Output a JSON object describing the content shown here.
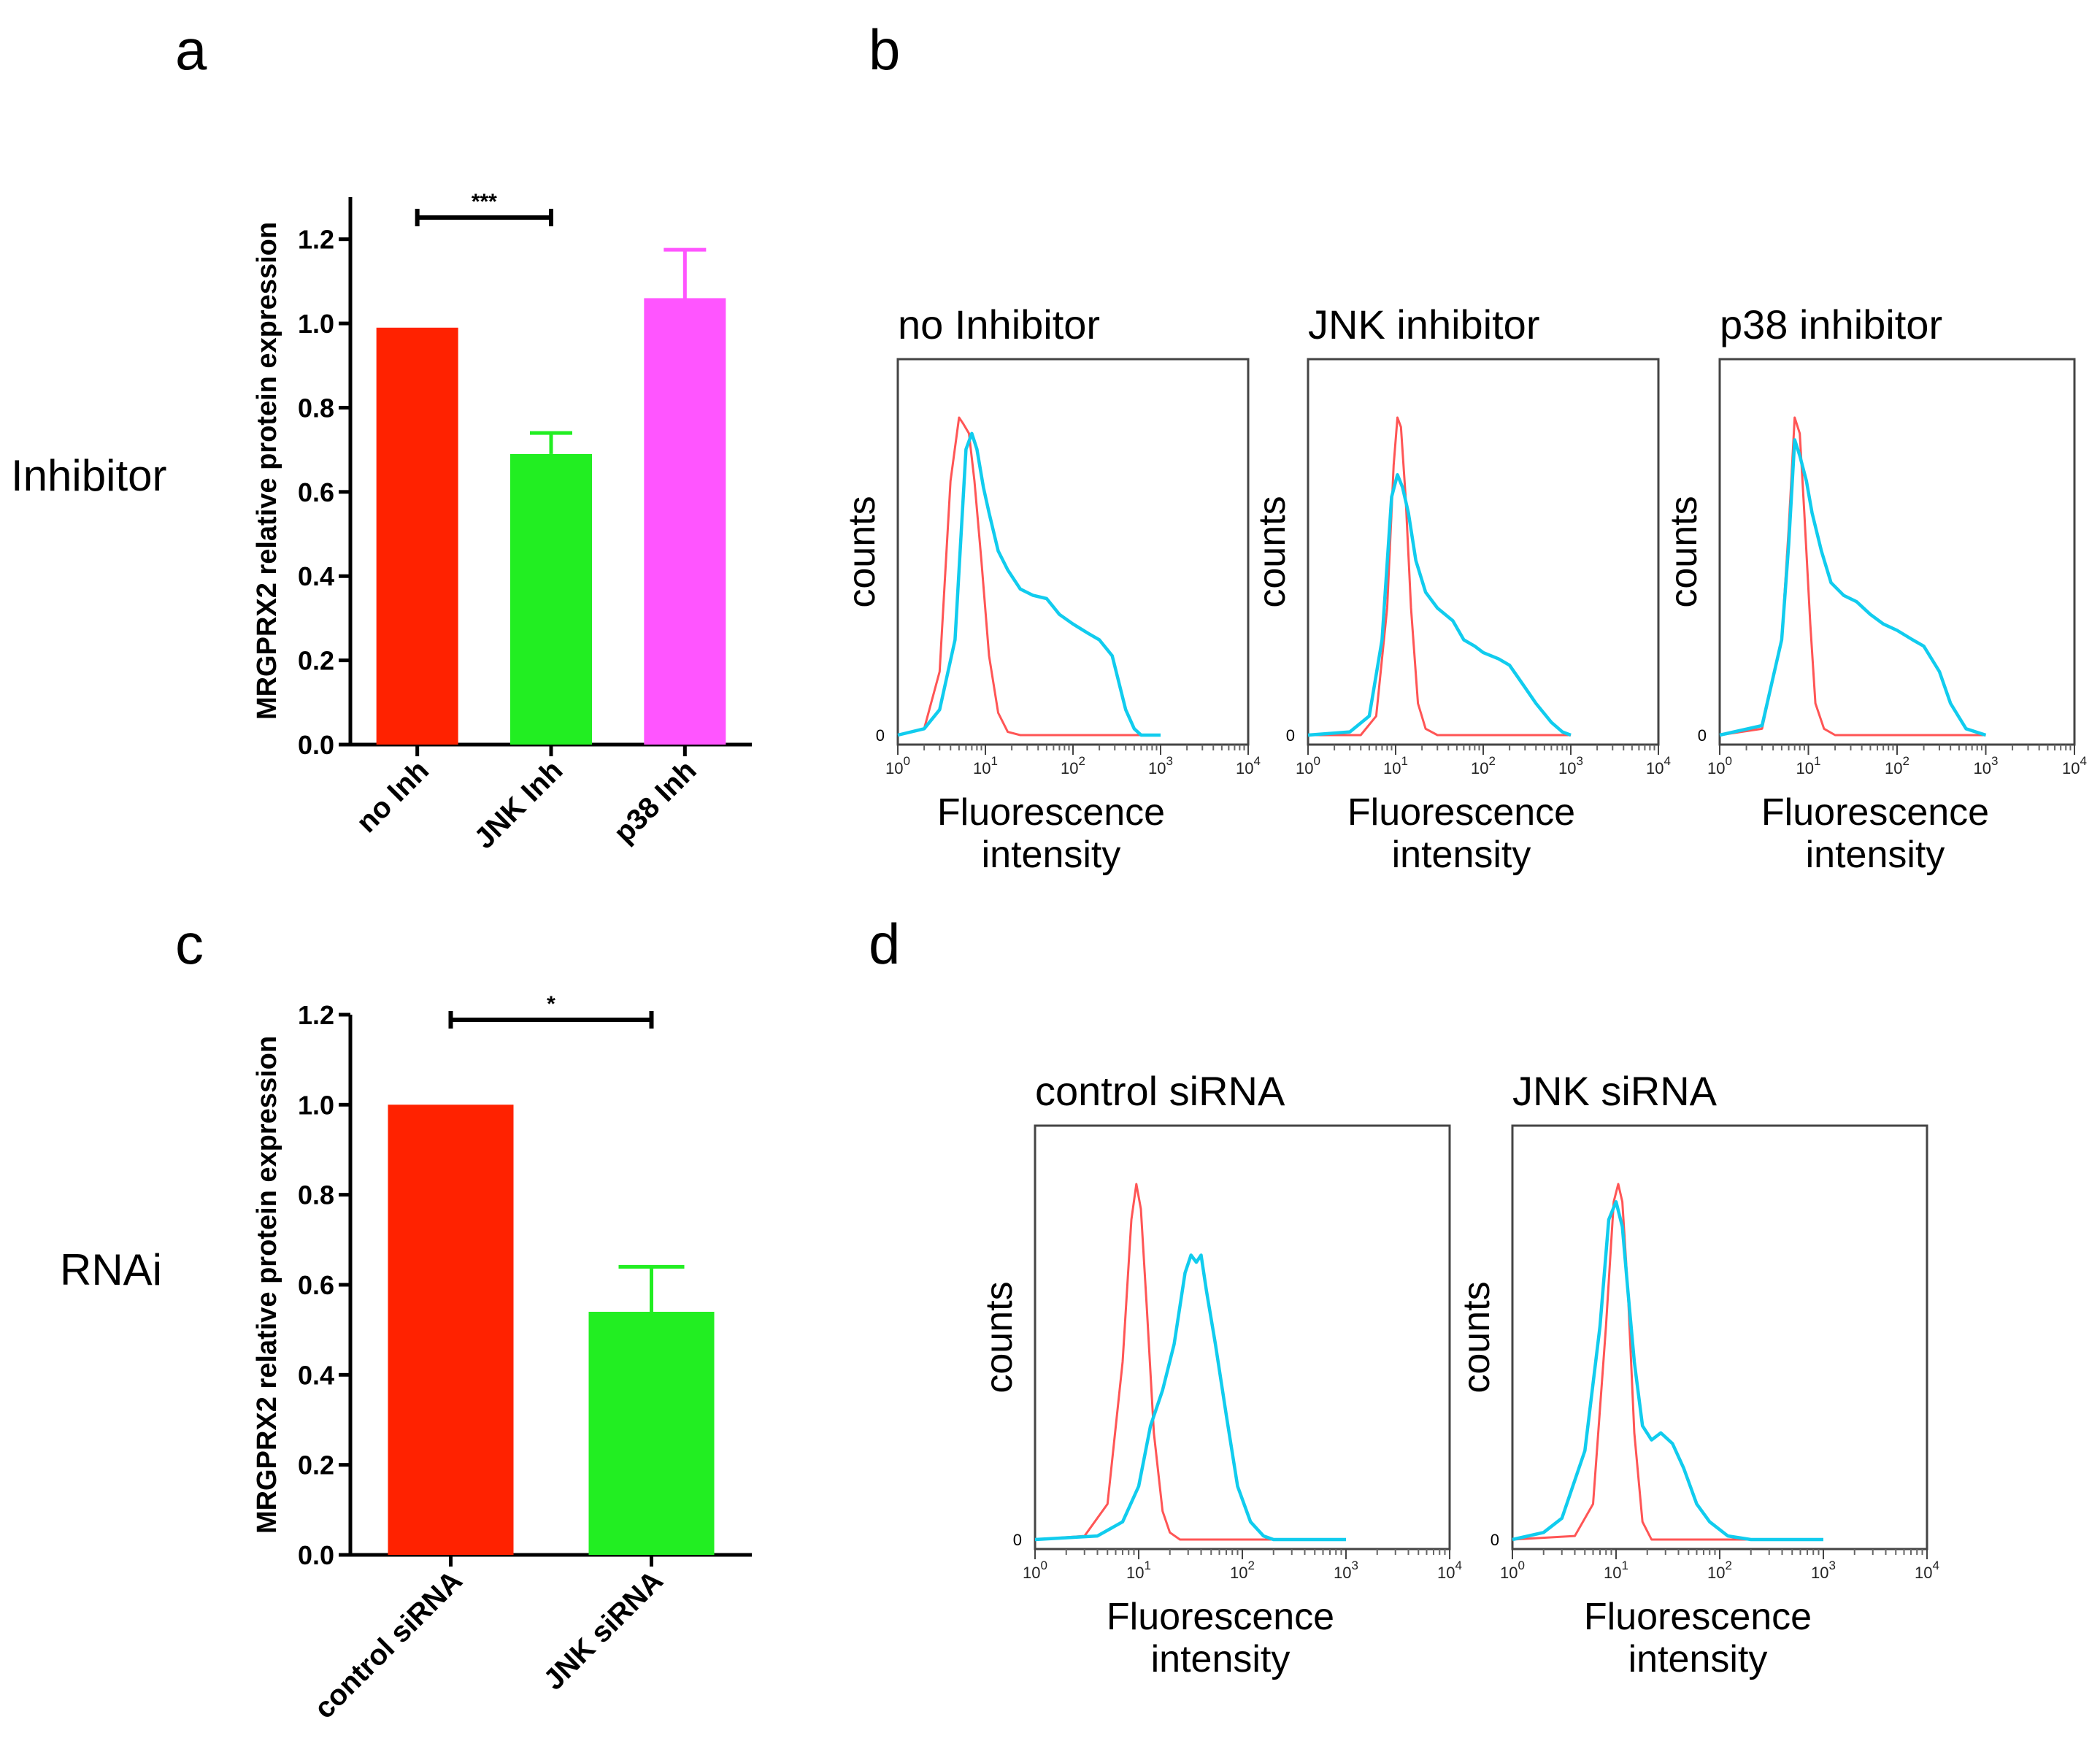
{
  "panel_letters": [
    "a",
    "b",
    "c",
    "d"
  ],
  "row_labels": [
    "Inhibitor",
    "RNAi"
  ],
  "chart_data": [
    {
      "panel": "a",
      "type": "bar",
      "ylabel": "MRGPRX2 relative protein expression",
      "categories": [
        "no Inh",
        "JNK Inh",
        "p38 Inh"
      ],
      "values": [
        0.99,
        0.69,
        1.06
      ],
      "error": [
        0,
        0.05,
        0.115
      ],
      "colors": [
        "#ff2200",
        "#22ee22",
        "#ff55ff"
      ],
      "ylim": [
        0,
        1.3
      ],
      "yticks": [
        "0.0",
        "0.2",
        "0.4",
        "0.6",
        "0.8",
        "1.0",
        "1.2"
      ],
      "significance": [
        {
          "from": "no Inh",
          "to": "JNK Inh",
          "label": "***"
        }
      ]
    },
    {
      "panel": "b",
      "type": "line",
      "xscale": "log",
      "xlabel": "Fluorescence intensity",
      "ylabel": "counts",
      "y_zero_label": "0",
      "xlim": [
        1,
        10000
      ],
      "xticks": [
        {
          "base": "10",
          "exp": "0"
        },
        {
          "base": "10",
          "exp": "1"
        },
        {
          "base": "10",
          "exp": "2"
        },
        {
          "base": "10",
          "exp": "3"
        },
        {
          "base": "10",
          "exp": "4"
        }
      ],
      "series_colors": [
        "#ff5555",
        "#11ccee"
      ],
      "plots": [
        {
          "title": "no Inhibitor",
          "series": [
            {
              "color": "#ff5555",
              "x": [
                1.0,
                2.0,
                3.0,
                4.0,
                5.0,
                5.6,
                6.5,
                7.5,
                9.0,
                11.0,
                14.0,
                18.0,
                25.0,
                1000.0
              ],
              "y": [
                0,
                0.02,
                0.2,
                0.8,
                1.0,
                0.98,
                0.95,
                0.8,
                0.55,
                0.25,
                0.07,
                0.01,
                0,
                0
              ]
            },
            {
              "color": "#11ccee",
              "x": [
                1.0,
                2.0,
                3.0,
                4.5,
                6.0,
                7.0,
                8.0,
                9.5,
                11.0,
                14.0,
                18.0,
                25.0,
                35.0,
                50.0,
                70.0,
                100.0,
                150.0,
                200.0,
                280.0,
                400.0,
                500.0,
                600.0,
                1000.0
              ],
              "y": [
                0,
                0.02,
                0.08,
                0.3,
                0.9,
                0.95,
                0.9,
                0.78,
                0.7,
                0.58,
                0.52,
                0.46,
                0.44,
                0.43,
                0.38,
                0.35,
                0.32,
                0.3,
                0.25,
                0.08,
                0.02,
                0,
                0
              ]
            }
          ]
        },
        {
          "title": "JNK inhibitor",
          "series": [
            {
              "color": "#ff5555",
              "x": [
                1.0,
                4.0,
                6.0,
                8.0,
                9.5,
                10.5,
                11.5,
                13.0,
                15.0,
                18.0,
                22.0,
                30.0,
                1000.0
              ],
              "y": [
                0,
                0,
                0.06,
                0.4,
                0.85,
                1.0,
                0.97,
                0.75,
                0.4,
                0.1,
                0.02,
                0,
                0
              ]
            },
            {
              "color": "#11ccee",
              "x": [
                1.0,
                3.0,
                5.0,
                7.0,
                9.0,
                10.5,
                12.0,
                14.0,
                17.0,
                22.0,
                30.0,
                45.0,
                60.0,
                80.0,
                100.0,
                150.0,
                200.0,
                300.0,
                400.0,
                600.0,
                800.0,
                1000.0
              ],
              "y": [
                0,
                0.01,
                0.06,
                0.3,
                0.75,
                0.82,
                0.78,
                0.7,
                0.55,
                0.45,
                0.4,
                0.36,
                0.3,
                0.28,
                0.26,
                0.24,
                0.22,
                0.15,
                0.1,
                0.04,
                0.01,
                0
              ]
            }
          ]
        },
        {
          "title": "p38 inhibitor",
          "series": [
            {
              "color": "#ff5555",
              "x": [
                1.0,
                3.0,
                5.0,
                6.0,
                7.0,
                8.0,
                9.0,
                10.5,
                12.0,
                15.0,
                20.0,
                1000.0
              ],
              "y": [
                0,
                0.02,
                0.3,
                0.65,
                1.0,
                0.95,
                0.7,
                0.35,
                0.1,
                0.02,
                0,
                0
              ]
            },
            {
              "color": "#11ccee",
              "x": [
                1.0,
                3.0,
                5.0,
                6.0,
                7.0,
                8.0,
                9.5,
                11.0,
                14.0,
                18.0,
                25.0,
                35.0,
                50.0,
                70.0,
                100.0,
                150.0,
                200.0,
                300.0,
                400.0,
                600.0,
                1000.0
              ],
              "y": [
                0,
                0.03,
                0.3,
                0.6,
                0.93,
                0.88,
                0.8,
                0.7,
                0.58,
                0.48,
                0.44,
                0.42,
                0.38,
                0.35,
                0.33,
                0.3,
                0.28,
                0.2,
                0.1,
                0.02,
                0
              ]
            }
          ]
        }
      ]
    },
    {
      "panel": "c",
      "type": "bar",
      "ylabel": "MRGPRX2 relative protein expression",
      "categories": [
        "control siRNA",
        "JNK siRNA"
      ],
      "values": [
        1.0,
        0.54
      ],
      "error": [
        0,
        0.1
      ],
      "colors": [
        "#ff2200",
        "#22ee22"
      ],
      "ylim": [
        0,
        1.2
      ],
      "yticks": [
        "0.0",
        "0.2",
        "0.4",
        "0.6",
        "0.8",
        "1.0",
        "1.2"
      ],
      "significance": [
        {
          "from": "control siRNA",
          "to": "JNK siRNA",
          "label": "*"
        }
      ]
    },
    {
      "panel": "d",
      "type": "line",
      "xscale": "log",
      "xlabel": "Fluorescence intensity",
      "ylabel": "counts",
      "y_zero_label": "0",
      "xlim": [
        1,
        10000
      ],
      "xticks": [
        {
          "base": "10",
          "exp": "0"
        },
        {
          "base": "10",
          "exp": "1"
        },
        {
          "base": "10",
          "exp": "2"
        },
        {
          "base": "10",
          "exp": "3"
        },
        {
          "base": "10",
          "exp": "4"
        }
      ],
      "series_colors": [
        "#ff5555",
        "#11ccee"
      ],
      "plots": [
        {
          "title": "control siRNA",
          "series": [
            {
              "color": "#ff5555",
              "x": [
                1.0,
                3.0,
                5.0,
                7.0,
                8.5,
                9.5,
                10.5,
                12.0,
                14.0,
                17.0,
                20.0,
                25.0,
                1000.0
              ],
              "y": [
                0,
                0.01,
                0.1,
                0.5,
                0.9,
                1.0,
                0.93,
                0.65,
                0.3,
                0.08,
                0.02,
                0,
                0
              ]
            },
            {
              "color": "#11ccee",
              "x": [
                1.0,
                4.0,
                7.0,
                10.0,
                13.0,
                17.0,
                22.0,
                28.0,
                32.0,
                36.0,
                40.0,
                45.0,
                55.0,
                70.0,
                90.0,
                120.0,
                160.0,
                200.0,
                1000.0
              ],
              "y": [
                0,
                0.01,
                0.05,
                0.15,
                0.32,
                0.42,
                0.55,
                0.75,
                0.8,
                0.78,
                0.8,
                0.7,
                0.55,
                0.35,
                0.15,
                0.05,
                0.01,
                0,
                0
              ]
            }
          ]
        },
        {
          "title": "JNK siRNA",
          "series": [
            {
              "color": "#ff5555",
              "x": [
                1.0,
                4.0,
                6.0,
                8.0,
                9.5,
                10.5,
                11.5,
                13.0,
                15.0,
                18.0,
                22.0,
                1000.0
              ],
              "y": [
                0,
                0.01,
                0.1,
                0.6,
                0.95,
                1.0,
                0.95,
                0.7,
                0.3,
                0.05,
                0,
                0
              ]
            },
            {
              "color": "#11ccee",
              "x": [
                1.0,
                2.0,
                3.0,
                5.0,
                7.0,
                8.5,
                10.0,
                11.5,
                13.0,
                15.0,
                18.0,
                22.0,
                27.0,
                35.0,
                45.0,
                60.0,
                80.0,
                120.0,
                200.0,
                1000.0
              ],
              "y": [
                0,
                0.02,
                0.06,
                0.25,
                0.6,
                0.9,
                0.95,
                0.88,
                0.7,
                0.5,
                0.32,
                0.28,
                0.3,
                0.27,
                0.2,
                0.1,
                0.05,
                0.01,
                0,
                0
              ]
            }
          ]
        }
      ]
    }
  ]
}
